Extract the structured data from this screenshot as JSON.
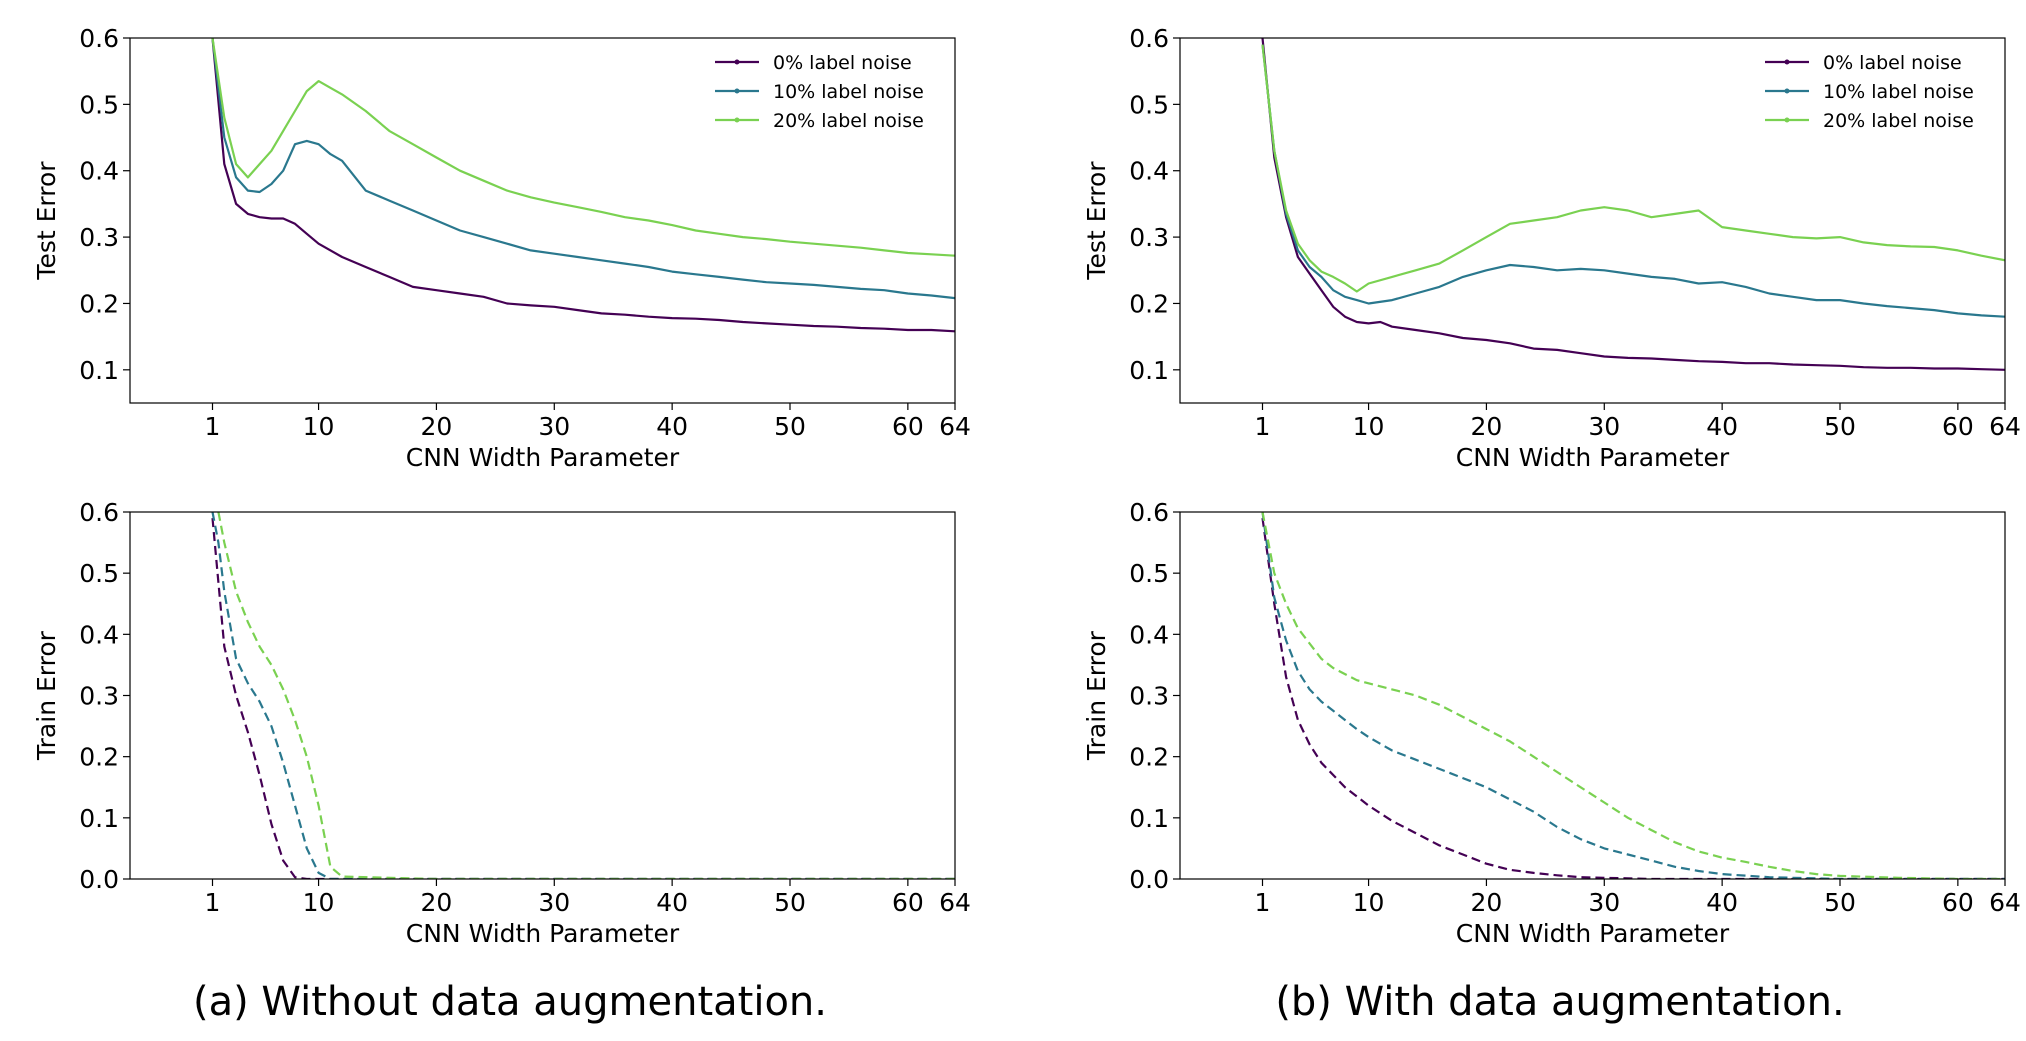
{
  "captions": {
    "left": "(a) Without data augmentation.",
    "right": "(b) With data augmentation."
  },
  "chart_data": [
    {
      "id": "a-test",
      "type": "line",
      "xlabel": "CNN Width Parameter",
      "ylabel": "Test Error",
      "xlim": [
        -6,
        64
      ],
      "ylim": [
        0.05,
        0.6
      ],
      "xticks": [
        1,
        10,
        20,
        30,
        40,
        50,
        60,
        64
      ],
      "yticks": [
        0.1,
        0.2,
        0.3,
        0.4,
        0.5,
        0.6
      ],
      "ytick_labels": [
        "0.1",
        "0.2",
        "0.3",
        "0.4",
        "0.5",
        "0.6"
      ],
      "legend": "top-right",
      "dashed": false,
      "series": [
        {
          "name": "0% label noise",
          "color": "#440154",
          "x": [
            1,
            2,
            3,
            4,
            5,
            6,
            7,
            8,
            9,
            10,
            12,
            14,
            16,
            18,
            20,
            22,
            24,
            26,
            28,
            30,
            32,
            34,
            36,
            38,
            40,
            42,
            44,
            46,
            48,
            50,
            52,
            54,
            56,
            58,
            60,
            62,
            64
          ],
          "y": [
            0.6,
            0.41,
            0.35,
            0.335,
            0.33,
            0.328,
            0.328,
            0.32,
            0.305,
            0.29,
            0.27,
            0.255,
            0.24,
            0.225,
            0.22,
            0.215,
            0.21,
            0.2,
            0.197,
            0.195,
            0.19,
            0.185,
            0.183,
            0.18,
            0.178,
            0.177,
            0.175,
            0.172,
            0.17,
            0.168,
            0.166,
            0.165,
            0.163,
            0.162,
            0.16,
            0.16,
            0.158
          ]
        },
        {
          "name": "10% label noise",
          "color": "#2a788e",
          "x": [
            1,
            2,
            3,
            4,
            5,
            6,
            7,
            8,
            9,
            10,
            11,
            12,
            14,
            16,
            18,
            20,
            22,
            24,
            26,
            28,
            30,
            32,
            34,
            36,
            38,
            40,
            42,
            44,
            46,
            48,
            50,
            52,
            54,
            56,
            58,
            60,
            62,
            64
          ],
          "y": [
            0.6,
            0.45,
            0.39,
            0.37,
            0.368,
            0.38,
            0.4,
            0.44,
            0.445,
            0.44,
            0.425,
            0.415,
            0.37,
            0.355,
            0.34,
            0.325,
            0.31,
            0.3,
            0.29,
            0.28,
            0.275,
            0.27,
            0.265,
            0.26,
            0.255,
            0.248,
            0.244,
            0.24,
            0.236,
            0.232,
            0.23,
            0.228,
            0.225,
            0.222,
            0.22,
            0.215,
            0.212,
            0.208
          ]
        },
        {
          "name": "20% label noise",
          "color": "#7ad151",
          "x": [
            1,
            2,
            3,
            4,
            5,
            6,
            7,
            8,
            9,
            10,
            11,
            12,
            14,
            16,
            18,
            20,
            22,
            24,
            26,
            28,
            30,
            32,
            34,
            36,
            38,
            40,
            42,
            44,
            46,
            48,
            50,
            52,
            54,
            56,
            58,
            60,
            62,
            64
          ],
          "y": [
            0.6,
            0.48,
            0.41,
            0.39,
            0.41,
            0.43,
            0.46,
            0.49,
            0.52,
            0.535,
            0.525,
            0.515,
            0.49,
            0.46,
            0.44,
            0.42,
            0.4,
            0.385,
            0.37,
            0.36,
            0.352,
            0.345,
            0.338,
            0.33,
            0.325,
            0.318,
            0.31,
            0.305,
            0.3,
            0.297,
            0.293,
            0.29,
            0.287,
            0.284,
            0.28,
            0.276,
            0.274,
            0.272
          ]
        }
      ]
    },
    {
      "id": "a-train",
      "type": "line",
      "xlabel": "CNN Width Parameter",
      "ylabel": "Train Error",
      "xlim": [
        -6,
        64
      ],
      "ylim": [
        0,
        0.6
      ],
      "xticks": [
        1,
        10,
        20,
        30,
        40,
        50,
        60,
        64
      ],
      "yticks": [
        0,
        0.1,
        0.2,
        0.3,
        0.4,
        0.5,
        0.6
      ],
      "ytick_labels": [
        "0.0",
        "0.1",
        "0.2",
        "0.3",
        "0.4",
        "0.5",
        "0.6"
      ],
      "dashed": true,
      "series": [
        {
          "color": "#440154",
          "x": [
            1,
            2,
            3,
            4,
            5,
            6,
            7,
            8,
            9,
            10,
            12,
            20,
            30,
            40,
            50,
            60,
            64
          ],
          "y": [
            0.59,
            0.38,
            0.3,
            0.24,
            0.17,
            0.09,
            0.03,
            0.003,
            0,
            0,
            0,
            0,
            0,
            0,
            0,
            0,
            0
          ]
        },
        {
          "color": "#2a788e",
          "x": [
            1,
            1.5,
            2,
            3,
            4,
            5,
            6,
            7,
            8,
            9,
            10,
            11,
            20,
            30,
            40,
            50,
            60,
            64
          ],
          "y": [
            0.6,
            0.55,
            0.47,
            0.36,
            0.32,
            0.29,
            0.25,
            0.19,
            0.12,
            0.05,
            0.01,
            0,
            0,
            0,
            0,
            0,
            0,
            0
          ]
        },
        {
          "color": "#7ad151",
          "x": [
            1.5,
            2,
            3,
            4,
            5,
            6,
            7,
            8,
            9,
            10,
            11,
            12,
            20,
            30,
            40,
            50,
            60,
            64
          ],
          "y": [
            0.6,
            0.55,
            0.47,
            0.42,
            0.38,
            0.35,
            0.31,
            0.26,
            0.2,
            0.12,
            0.02,
            0.004,
            0,
            0,
            0,
            0,
            0,
            0
          ]
        }
      ]
    },
    {
      "id": "b-test",
      "type": "line",
      "xlabel": "CNN Width Parameter",
      "ylabel": "Test Error",
      "xlim": [
        -6,
        64
      ],
      "ylim": [
        0.05,
        0.6
      ],
      "xticks": [
        1,
        10,
        20,
        30,
        40,
        50,
        60,
        64
      ],
      "yticks": [
        0.1,
        0.2,
        0.3,
        0.4,
        0.5,
        0.6
      ],
      "ytick_labels": [
        "0.1",
        "0.2",
        "0.3",
        "0.4",
        "0.5",
        "0.6"
      ],
      "legend": "top-right",
      "dashed": false,
      "series": [
        {
          "name": "0% label noise",
          "color": "#440154",
          "x": [
            1,
            2,
            3,
            4,
            5,
            6,
            7,
            8,
            9,
            10,
            11,
            12,
            14,
            16,
            18,
            20,
            22,
            24,
            26,
            28,
            30,
            32,
            34,
            36,
            38,
            40,
            42,
            44,
            46,
            48,
            50,
            52,
            54,
            56,
            58,
            60,
            62,
            64
          ],
          "y": [
            0.6,
            0.42,
            0.33,
            0.27,
            0.245,
            0.22,
            0.195,
            0.18,
            0.172,
            0.17,
            0.172,
            0.165,
            0.16,
            0.155,
            0.148,
            0.145,
            0.14,
            0.132,
            0.13,
            0.125,
            0.12,
            0.118,
            0.117,
            0.115,
            0.113,
            0.112,
            0.11,
            0.11,
            0.108,
            0.107,
            0.106,
            0.104,
            0.103,
            0.103,
            0.102,
            0.102,
            0.101,
            0.1
          ]
        },
        {
          "name": "10% label noise",
          "color": "#2a788e",
          "x": [
            1,
            2,
            3,
            4,
            5,
            6,
            7,
            8,
            9,
            10,
            12,
            14,
            16,
            18,
            20,
            22,
            24,
            26,
            28,
            30,
            32,
            34,
            36,
            38,
            40,
            42,
            44,
            46,
            48,
            50,
            52,
            54,
            56,
            58,
            60,
            62,
            64
          ],
          "y": [
            0.59,
            0.43,
            0.335,
            0.28,
            0.255,
            0.24,
            0.22,
            0.21,
            0.205,
            0.2,
            0.205,
            0.215,
            0.225,
            0.24,
            0.25,
            0.258,
            0.255,
            0.25,
            0.252,
            0.25,
            0.245,
            0.24,
            0.237,
            0.23,
            0.232,
            0.225,
            0.215,
            0.21,
            0.205,
            0.205,
            0.2,
            0.196,
            0.193,
            0.19,
            0.185,
            0.182,
            0.18
          ]
        },
        {
          "name": "20% label noise",
          "color": "#7ad151",
          "x": [
            1,
            2,
            3,
            4,
            5,
            6,
            7,
            8,
            9,
            10,
            12,
            14,
            16,
            18,
            20,
            22,
            24,
            26,
            28,
            30,
            32,
            34,
            36,
            38,
            40,
            42,
            44,
            46,
            48,
            50,
            52,
            54,
            56,
            58,
            60,
            62,
            64
          ],
          "y": [
            0.59,
            0.43,
            0.34,
            0.29,
            0.265,
            0.248,
            0.24,
            0.23,
            0.218,
            0.23,
            0.24,
            0.25,
            0.26,
            0.28,
            0.3,
            0.32,
            0.325,
            0.33,
            0.34,
            0.345,
            0.34,
            0.33,
            0.335,
            0.34,
            0.315,
            0.31,
            0.305,
            0.3,
            0.298,
            0.3,
            0.292,
            0.288,
            0.286,
            0.285,
            0.28,
            0.272,
            0.265
          ]
        }
      ]
    },
    {
      "id": "b-train",
      "type": "line",
      "xlabel": "CNN Width Parameter",
      "ylabel": "Train Error",
      "xlim": [
        -6,
        64
      ],
      "ylim": [
        0,
        0.6
      ],
      "xticks": [
        1,
        10,
        20,
        30,
        40,
        50,
        60,
        64
      ],
      "yticks": [
        0,
        0.1,
        0.2,
        0.3,
        0.4,
        0.5,
        0.6
      ],
      "ytick_labels": [
        "0.0",
        "0.1",
        "0.2",
        "0.3",
        "0.4",
        "0.5",
        "0.6"
      ],
      "dashed": true,
      "series": [
        {
          "color": "#440154",
          "x": [
            1,
            2,
            3,
            4,
            5,
            6,
            7,
            8,
            9,
            10,
            12,
            14,
            16,
            18,
            20,
            22,
            24,
            26,
            28,
            30,
            34,
            40,
            50,
            60,
            64
          ],
          "y": [
            0.59,
            0.45,
            0.33,
            0.26,
            0.22,
            0.19,
            0.17,
            0.15,
            0.135,
            0.12,
            0.095,
            0.075,
            0.055,
            0.04,
            0.025,
            0.015,
            0.01,
            0.006,
            0.003,
            0.002,
            0,
            0,
            0,
            0,
            0
          ]
        },
        {
          "color": "#2a788e",
          "x": [
            1,
            2,
            3,
            4,
            5,
            6,
            7,
            8,
            9,
            10,
            12,
            14,
            16,
            18,
            20,
            22,
            24,
            26,
            28,
            30,
            32,
            34,
            36,
            38,
            40,
            44,
            50,
            60,
            64
          ],
          "y": [
            0.6,
            0.46,
            0.39,
            0.34,
            0.31,
            0.29,
            0.275,
            0.26,
            0.245,
            0.232,
            0.21,
            0.195,
            0.18,
            0.165,
            0.15,
            0.13,
            0.11,
            0.085,
            0.065,
            0.05,
            0.04,
            0.03,
            0.02,
            0.013,
            0.008,
            0.003,
            0,
            0,
            0
          ]
        },
        {
          "color": "#7ad151",
          "x": [
            1,
            2,
            3,
            4,
            5,
            6,
            7,
            8,
            9,
            10,
            12,
            14,
            16,
            18,
            20,
            22,
            24,
            26,
            28,
            30,
            32,
            34,
            36,
            38,
            40,
            42,
            44,
            46,
            48,
            50,
            55,
            60,
            64
          ],
          "y": [
            0.6,
            0.5,
            0.45,
            0.41,
            0.385,
            0.36,
            0.345,
            0.335,
            0.325,
            0.32,
            0.31,
            0.3,
            0.285,
            0.265,
            0.245,
            0.225,
            0.2,
            0.175,
            0.15,
            0.125,
            0.1,
            0.08,
            0.06,
            0.045,
            0.035,
            0.028,
            0.02,
            0.013,
            0.008,
            0.005,
            0.002,
            0,
            0
          ]
        }
      ]
    }
  ]
}
